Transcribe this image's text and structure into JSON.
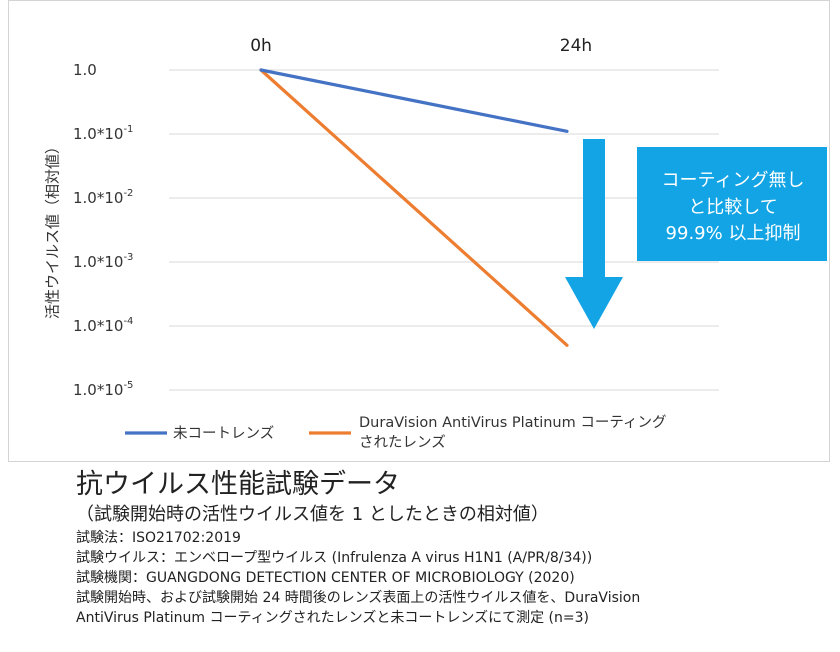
{
  "chart_data": {
    "type": "line",
    "x": [
      "0h",
      "24h"
    ],
    "yscale": "log",
    "ylim": [
      1e-05,
      1
    ],
    "ylabel": "活性ウイルス値（相対値）",
    "ytick_labels": [
      {
        "value": 1,
        "base": "1.0",
        "exp": ""
      },
      {
        "value": 0.1,
        "base": "1.0*10",
        "exp": "-1"
      },
      {
        "value": 0.01,
        "base": "1.0*10",
        "exp": "-2"
      },
      {
        "value": 0.001,
        "base": "1.0*10",
        "exp": "-3"
      },
      {
        "value": 0.0001,
        "base": "1.0*10",
        "exp": "-4"
      },
      {
        "value": 1e-05,
        "base": "1.0*10",
        "exp": "-5"
      }
    ],
    "grid": true,
    "legend_position": "bottom",
    "series": [
      {
        "name": "未コートレンズ",
        "values": [
          1,
          0.11
        ],
        "color": "#4472c4"
      },
      {
        "name_lines": [
          "DuraVision AntiVirus Platinum コーティング",
          "されたレンズ"
        ],
        "values": [
          1,
          5e-05
        ],
        "color": "#ed7d31"
      }
    ],
    "annotation": {
      "lines": [
        "コーティング無し",
        "と比較して",
        "99.9% 以上抑制"
      ],
      "color": "#12a4e4",
      "text_color": "#ffffff"
    }
  },
  "caption": {
    "title": "抗ウイルス性能試験データ",
    "subtitle": "（試験開始時の活性ウイルス値を 1 としたときの相対値）",
    "lines": [
      "試験法：ISO21702:2019",
      "試験ウイルス：エンベロープ型ウイルス (Infrulenza A virus H1N1 (A/PR/8/34))",
      "試験機関：GUANGDONG DETECTION CENTER OF MICROBIOLOGY (2020)",
      "試験開始時、および試験開始 24 時間後のレンズ表面上の活性ウイルス値を、DuraVision",
      "AntiVirus Platinum コーティングされたレンズと未コートレンズにて測定 (n=3)"
    ]
  }
}
